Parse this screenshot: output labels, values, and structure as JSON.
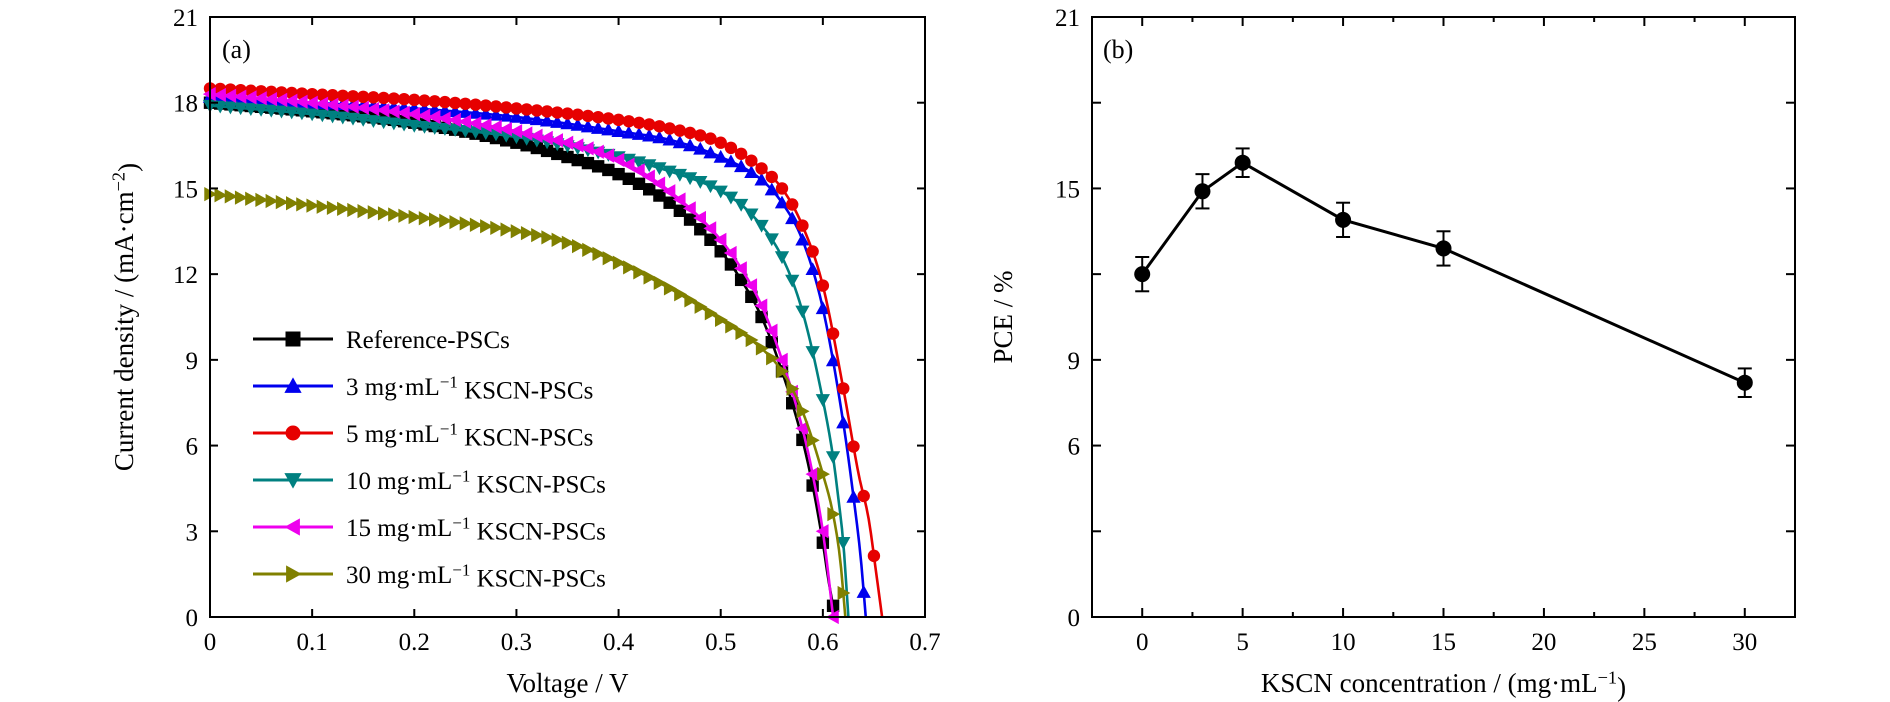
{
  "chart_data": [
    {
      "type": "line",
      "panel_label": "(a)",
      "xlabel": "Voltage / V",
      "ylabel": "Current density / (mA·cm⁻²)",
      "xlim": [
        0,
        0.7
      ],
      "ylim": [
        0,
        21
      ],
      "xticks": [
        "0",
        "0.1",
        "0.2",
        "0.3",
        "0.4",
        "0.5",
        "0.6",
        "0.7"
      ],
      "yticks": [
        "0",
        "3",
        "6",
        "9",
        "12",
        "15",
        "18",
        "21"
      ],
      "legend_position": "lower-left",
      "series": [
        {
          "name": "Reference-PSCs",
          "color": "#000000",
          "marker": "square",
          "points": [
            [
              0,
              18.0
            ],
            [
              0.1,
              17.7
            ],
            [
              0.2,
              17.3
            ],
            [
              0.3,
              16.6
            ],
            [
              0.35,
              16.1
            ],
            [
              0.4,
              15.5
            ],
            [
              0.45,
              14.5
            ],
            [
              0.5,
              12.8
            ],
            [
              0.52,
              11.8
            ],
            [
              0.54,
              10.5
            ],
            [
              0.56,
              8.6
            ],
            [
              0.58,
              6.2
            ],
            [
              0.59,
              4.6
            ],
            [
              0.6,
              2.6
            ],
            [
              0.605,
              1.4
            ],
            [
              0.612,
              0
            ]
          ]
        },
        {
          "name": "3 mg·mL⁻¹ KSCN-PSCs",
          "color": "#0000ee",
          "marker": "triangle-up",
          "points": [
            [
              0,
              18.2
            ],
            [
              0.1,
              18.0
            ],
            [
              0.2,
              17.8
            ],
            [
              0.3,
              17.5
            ],
            [
              0.4,
              17.0
            ],
            [
              0.45,
              16.7
            ],
            [
              0.5,
              16.1
            ],
            [
              0.54,
              15.3
            ],
            [
              0.56,
              14.5
            ],
            [
              0.58,
              13.2
            ],
            [
              0.6,
              10.8
            ],
            [
              0.62,
              6.8
            ],
            [
              0.63,
              4.2
            ],
            [
              0.637,
              2.1
            ],
            [
              0.642,
              0
            ]
          ]
        },
        {
          "name": "5 mg·mL⁻¹ KSCN-PSCs",
          "color": "#e60000",
          "marker": "circle",
          "points": [
            [
              0,
              18.5
            ],
            [
              0.1,
              18.3
            ],
            [
              0.2,
              18.1
            ],
            [
              0.3,
              17.8
            ],
            [
              0.4,
              17.4
            ],
            [
              0.45,
              17.1
            ],
            [
              0.5,
              16.6
            ],
            [
              0.54,
              15.7
            ],
            [
              0.56,
              15.0
            ],
            [
              0.58,
              13.7
            ],
            [
              0.6,
              11.6
            ],
            [
              0.62,
              8.0
            ],
            [
              0.635,
              5.0
            ],
            [
              0.645,
              3.4
            ],
            [
              0.652,
              1.6
            ],
            [
              0.658,
              0
            ]
          ]
        },
        {
          "name": "10 mg·mL⁻¹ KSCN-PSCs",
          "color": "#008080",
          "marker": "triangle-down",
          "points": [
            [
              0,
              17.9
            ],
            [
              0.1,
              17.6
            ],
            [
              0.2,
              17.2
            ],
            [
              0.3,
              16.8
            ],
            [
              0.4,
              16.1
            ],
            [
              0.45,
              15.6
            ],
            [
              0.5,
              14.9
            ],
            [
              0.53,
              14.1
            ],
            [
              0.56,
              12.6
            ],
            [
              0.58,
              10.7
            ],
            [
              0.6,
              7.6
            ],
            [
              0.61,
              5.6
            ],
            [
              0.615,
              4.2
            ],
            [
              0.62,
              2.6
            ],
            [
              0.625,
              0
            ]
          ]
        },
        {
          "name": "15 mg·mL⁻¹ KSCN-PSCs",
          "color": "#ee00ee",
          "marker": "triangle-left",
          "points": [
            [
              0,
              18.3
            ],
            [
              0.1,
              18.0
            ],
            [
              0.2,
              17.6
            ],
            [
              0.3,
              17.0
            ],
            [
              0.4,
              16.0
            ],
            [
              0.45,
              14.9
            ],
            [
              0.5,
              13.2
            ],
            [
              0.52,
              12.2
            ],
            [
              0.54,
              10.9
            ],
            [
              0.56,
              9.0
            ],
            [
              0.58,
              6.6
            ],
            [
              0.59,
              5.0
            ],
            [
              0.6,
              3.0
            ],
            [
              0.605,
              1.6
            ],
            [
              0.61,
              0
            ]
          ]
        },
        {
          "name": "30 mg·mL⁻¹ KSCN-PSCs",
          "color": "#808000",
          "marker": "triangle-right",
          "points": [
            [
              0,
              14.8
            ],
            [
              0.1,
              14.4
            ],
            [
              0.2,
              14.0
            ],
            [
              0.3,
              13.5
            ],
            [
              0.35,
              13.1
            ],
            [
              0.4,
              12.4
            ],
            [
              0.45,
              11.5
            ],
            [
              0.5,
              10.4
            ],
            [
              0.54,
              9.4
            ],
            [
              0.56,
              8.6
            ],
            [
              0.58,
              7.2
            ],
            [
              0.6,
              5.0
            ],
            [
              0.61,
              3.6
            ],
            [
              0.617,
              2.0
            ],
            [
              0.622,
              0
            ]
          ]
        }
      ]
    },
    {
      "type": "line",
      "panel_label": "(b)",
      "xlabel": "KSCN concentration / (mg·mL⁻¹)",
      "ylabel": "PCE / %",
      "xlim": [
        -2.5,
        32.5
      ],
      "ylim": [
        0,
        21
      ],
      "xticks": [
        "0",
        "5",
        "10",
        "15",
        "20",
        "25",
        "30"
      ],
      "yticks": [
        "0",
        "3",
        "6",
        "9",
        "12",
        "15",
        "18",
        "21"
      ],
      "yticks_labeled": [
        "0",
        "6",
        "9",
        "15",
        "21"
      ],
      "color": "#000000",
      "marker": "circle",
      "x": [
        0,
        3,
        5,
        10,
        15,
        30
      ],
      "y": [
        12.0,
        14.9,
        15.9,
        13.9,
        12.9,
        8.2
      ],
      "error": [
        0.6,
        0.6,
        0.5,
        0.6,
        0.6,
        0.5
      ]
    }
  ]
}
